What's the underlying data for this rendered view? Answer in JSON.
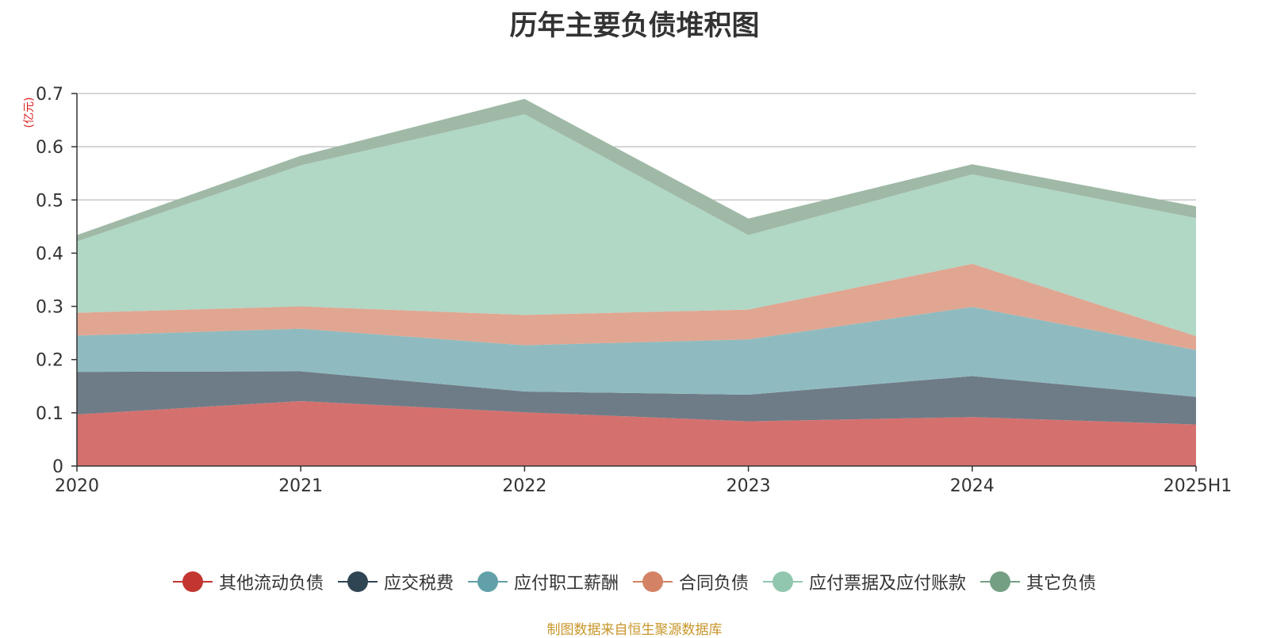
{
  "title": "历年主要负债堆积图",
  "unit": "(亿元)",
  "source": "制图数据来自恒生聚源数据库",
  "chart_data": {
    "type": "area",
    "stacked": true,
    "title": "历年主要负债堆积图",
    "ylabel": "(亿元)",
    "ylim": [
      0,
      0.7
    ],
    "yticks": [
      "0",
      "0.1",
      "0.2",
      "0.3",
      "0.4",
      "0.5",
      "0.6",
      "0.7"
    ],
    "categories": [
      "2020",
      "2021",
      "2022",
      "2023",
      "2024",
      "2025H1"
    ],
    "grid": true,
    "legend": "bottom",
    "series": [
      {
        "name": "其他流动负债",
        "color": "#c23531",
        "fill": "#d4716e",
        "values": [
          0.097,
          0.122,
          0.101,
          0.084,
          0.092,
          0.078
        ]
      },
      {
        "name": "应交税费",
        "color": "#2f4554",
        "fill": "#6e7c87",
        "values": [
          0.08,
          0.056,
          0.039,
          0.05,
          0.077,
          0.052
        ]
      },
      {
        "name": "应付职工薪酬",
        "color": "#61a0a8",
        "fill": "#8fbbc0",
        "values": [
          0.068,
          0.08,
          0.087,
          0.104,
          0.13,
          0.088
        ]
      },
      {
        "name": "合同负债",
        "color": "#d48265",
        "fill": "#e0a691",
        "values": [
          0.043,
          0.042,
          0.057,
          0.056,
          0.081,
          0.026
        ]
      },
      {
        "name": "应付票据及应付账款",
        "color": "#91c7ae",
        "fill": "#b1d7c5",
        "values": [
          0.134,
          0.265,
          0.377,
          0.14,
          0.168,
          0.222
        ]
      },
      {
        "name": "其它负债",
        "color": "#749f83",
        "fill": "#9fb9a6",
        "values": [
          0.012,
          0.018,
          0.029,
          0.031,
          0.019,
          0.022
        ]
      }
    ]
  }
}
